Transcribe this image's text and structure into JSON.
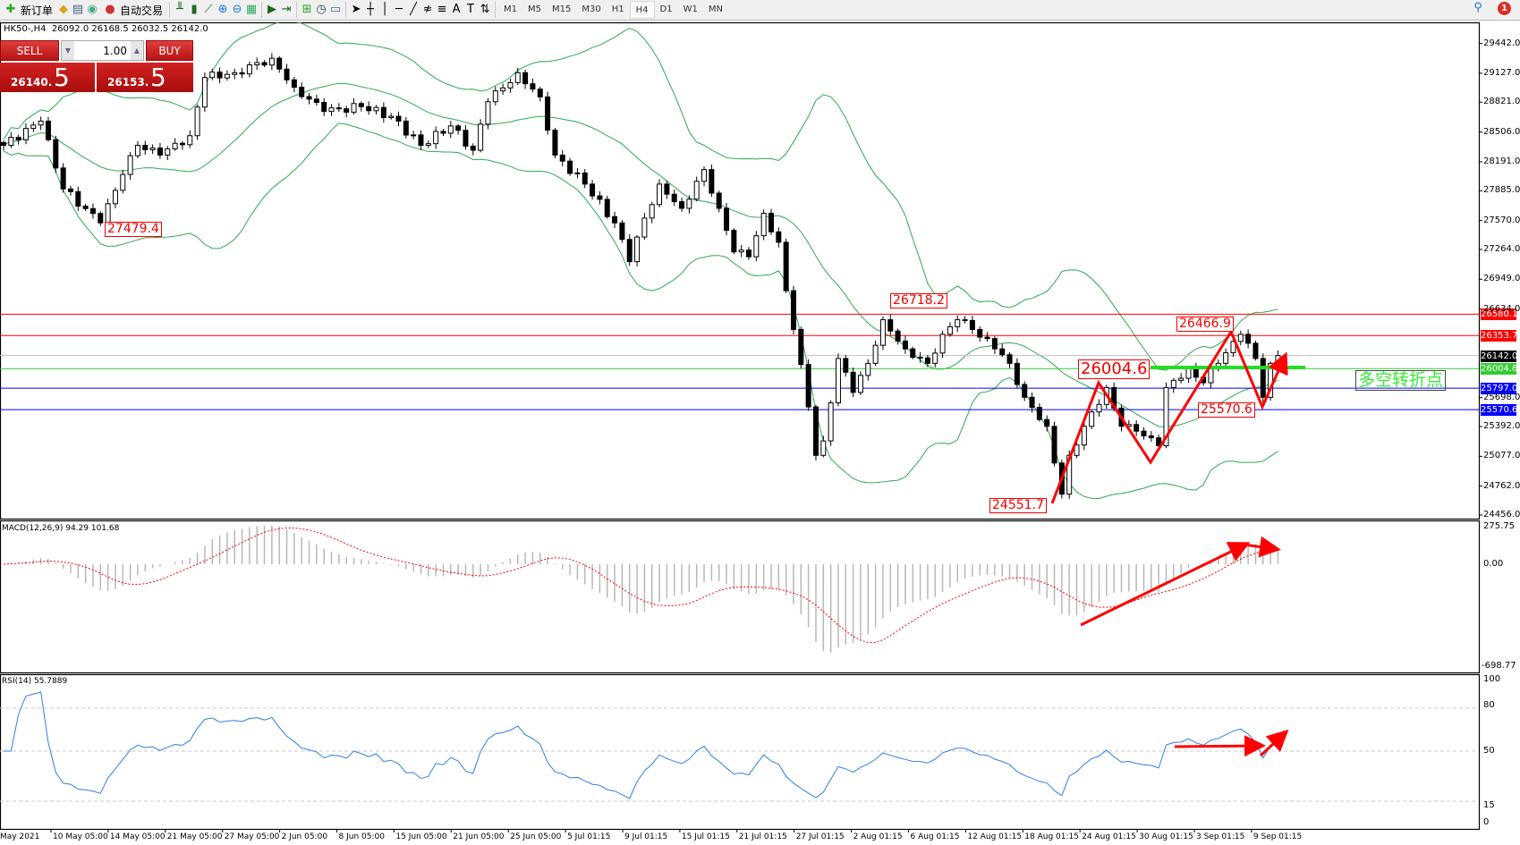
{
  "toolbar": {
    "new_order": "新订单",
    "auto_trading": "自动交易",
    "timeframes": [
      "M1",
      "M5",
      "M15",
      "M30",
      "H1",
      "H4",
      "D1",
      "W1",
      "MN"
    ],
    "active_timeframe": "H4",
    "notification_count": "1",
    "icons": [
      "new-order-icon",
      "metaeditor-icon",
      "navigator-icon",
      "signals-icon",
      "auto-trading-icon",
      "bar-chart-icon",
      "candlestick-icon",
      "line-chart-icon",
      "zoom-in-icon",
      "zoom-out-icon",
      "tile-icon",
      "autoscroll-icon",
      "chart-shift-icon",
      "indicators-icon",
      "periods-icon",
      "templates-icon",
      "cursor-icon",
      "crosshair-icon",
      "vertical-line-icon",
      "horizontal-line-icon",
      "trendline-icon",
      "equidistant-channel-icon",
      "fibonacci-icon",
      "text-icon",
      "text-label-icon",
      "arrows-icon"
    ]
  },
  "symbol_header": "HK50-,H4  26092.0 26168.5 26032.5 26142.0",
  "trade_panel": {
    "sell_label": "SELL",
    "buy_label": "BUY",
    "lot": "1.00",
    "sell_price_main": "26140.",
    "sell_price_big": "5",
    "buy_price_main": "26153.",
    "buy_price_big": "5"
  },
  "colors": {
    "bands": "#2fa84f",
    "bull": "#ffffff",
    "bear": "#000000",
    "annotation": "#ff0000",
    "macd_hist": "#b8b8b8",
    "macd_signal": "#ff0000",
    "rsi": "#2f7fe0",
    "support": "#0000ff",
    "resistance": "#ff0000",
    "pivot": "#22cc22"
  },
  "chart_data": {
    "type": "candlestick",
    "symbol": "HK50-",
    "timeframe": "H4",
    "price_axis_ticks": [
      "29442.0",
      "29127.0",
      "28821.0",
      "28506.0",
      "28191.0",
      "27885.0",
      "27570.0",
      "27264.0",
      "26949.0",
      "26634.0",
      "25698.0",
      "25392.0",
      "25077.0",
      "24762.0",
      "24456.0"
    ],
    "price_range": [
      24456,
      29442
    ],
    "date_ticks": [
      "May 2021",
      "10 May 05:00",
      "14 May 05:00",
      "21 May 05:00",
      "27 May 05:00",
      "2 Jun 05:00",
      "8 Jun 05:00",
      "15 Jun 05:00",
      "21 Jun 05:00",
      "25 Jun 05:00",
      "5 Jul 01:15",
      "9 Jul 01:15",
      "15 Jul 01:15",
      "21 Jul 01:15",
      "27 Jul 01:15",
      "2 Aug 01:15",
      "6 Aug 01:15",
      "12 Aug 01:15",
      "18 Aug 01:15",
      "24 Aug 01:15",
      "30 Aug 01:15",
      "3 Sep 01:15",
      "9 Sep 01:15"
    ],
    "close_anchors": [
      [
        0,
        28365
      ],
      [
        5,
        28621
      ],
      [
        8,
        27904
      ],
      [
        13,
        27545
      ],
      [
        16,
        28057
      ],
      [
        18,
        28365
      ],
      [
        21,
        28262
      ],
      [
        25,
        28467
      ],
      [
        27,
        29082
      ],
      [
        31,
        29133
      ],
      [
        36,
        29286
      ],
      [
        39,
        28979
      ],
      [
        43,
        28723
      ],
      [
        48,
        28774
      ],
      [
        52,
        28672
      ],
      [
        56,
        28365
      ],
      [
        60,
        28570
      ],
      [
        63,
        28313
      ],
      [
        65,
        28826
      ],
      [
        69,
        29133
      ],
      [
        72,
        28877
      ],
      [
        74,
        28262
      ],
      [
        78,
        27955
      ],
      [
        82,
        27545
      ],
      [
        84,
        27135
      ],
      [
        86,
        27596
      ],
      [
        88,
        27955
      ],
      [
        91,
        27699
      ],
      [
        94,
        28109
      ],
      [
        96,
        27699
      ],
      [
        98,
        27238
      ],
      [
        100,
        27187
      ],
      [
        102,
        27647
      ],
      [
        104,
        27340
      ],
      [
        105,
        26828
      ],
      [
        106,
        26418
      ],
      [
        108,
        25599
      ],
      [
        109,
        25087
      ],
      [
        110,
        25240
      ],
      [
        112,
        26111
      ],
      [
        114,
        25753
      ],
      [
        116,
        26060
      ],
      [
        118,
        26521
      ],
      [
        121,
        26213
      ],
      [
        124,
        26060
      ],
      [
        126,
        26367
      ],
      [
        128,
        26521
      ],
      [
        130,
        26418
      ],
      [
        133,
        26213
      ],
      [
        135,
        26060
      ],
      [
        137,
        25701
      ],
      [
        140,
        25394
      ],
      [
        142,
        24677
      ],
      [
        143,
        25087
      ],
      [
        145,
        25394
      ],
      [
        148,
        25804
      ],
      [
        150,
        25394
      ],
      [
        152,
        25343
      ],
      [
        155,
        25189
      ],
      [
        156,
        25804
      ],
      [
        159,
        26009
      ],
      [
        161,
        25855
      ],
      [
        163,
        26060
      ],
      [
        166,
        26367
      ],
      [
        168,
        26111
      ],
      [
        169,
        25701
      ],
      [
        170,
        26060
      ],
      [
        171,
        26142
      ]
    ],
    "horizontal_lines": [
      {
        "price": 26580.1,
        "label": "26580.1",
        "color": "#ff0000"
      },
      {
        "price": 26353.7,
        "label": "26353.7",
        "color": "#ff0000"
      },
      {
        "price": 26142.0,
        "label": "26142.0",
        "color": "#000000"
      },
      {
        "price": 26004.6,
        "label": "26004.6",
        "color": "#33cc33"
      },
      {
        "price": 25797.0,
        "label": "25797.0",
        "color": "#0000ff"
      },
      {
        "price": 25570.6,
        "label": "25570.6",
        "color": "#0000ff"
      }
    ],
    "annotations": [
      "27479.4",
      "26718.2",
      "26466.9",
      "26004.6",
      "25570.6",
      "24551.7"
    ],
    "pivot_text": "多空转折点",
    "macd": {
      "label": "MACD(12,26,9) 94.29 101.68",
      "ticks": [
        "275.75",
        "0.00",
        "-698.77"
      ],
      "range": [
        -698.77,
        275.75
      ]
    },
    "rsi": {
      "label": "RSI(14) 55.7889",
      "ticks": [
        "100",
        "80",
        "50",
        "15",
        "0"
      ],
      "levels": [
        80,
        50,
        15
      ]
    }
  }
}
